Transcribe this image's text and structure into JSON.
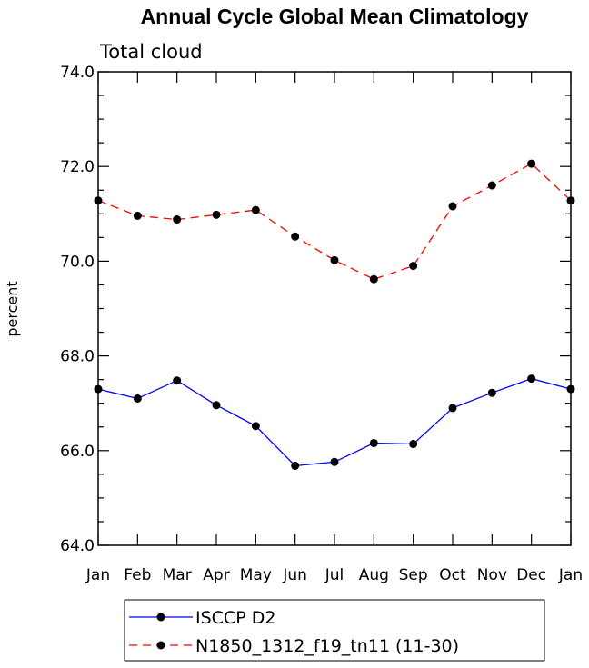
{
  "chart_data": {
    "type": "line",
    "title": "Annual Cycle Global Mean Climatology",
    "subtitle": "Total cloud",
    "xlabel": "",
    "ylabel": "percent",
    "categories": [
      "Jan",
      "Feb",
      "Mar",
      "Apr",
      "May",
      "Jun",
      "Jul",
      "Aug",
      "Sep",
      "Oct",
      "Nov",
      "Dec",
      "Jan"
    ],
    "ylim": [
      64.0,
      74.0
    ],
    "y_ticks": [
      "64.0",
      "66.0",
      "68.0",
      "70.0",
      "72.0",
      "74.0"
    ],
    "grid": false,
    "legend_position": "bottom",
    "series": [
      {
        "name": "ISCCP D2",
        "color": "#0000ff",
        "line_style": "solid",
        "marker": "filled-circle",
        "values": [
          67.3,
          67.1,
          67.48,
          66.96,
          66.52,
          65.68,
          65.76,
          66.16,
          66.14,
          66.9,
          67.22,
          67.52,
          67.3
        ]
      },
      {
        "name": "N1850_1312_f19_tn11 (11-30)",
        "color": "#ff0000",
        "line_style": "dashed",
        "marker": "filled-circle",
        "values": [
          71.28,
          70.96,
          70.88,
          70.98,
          71.08,
          70.52,
          70.02,
          69.62,
          69.9,
          71.16,
          71.6,
          72.06,
          71.28
        ]
      }
    ]
  }
}
